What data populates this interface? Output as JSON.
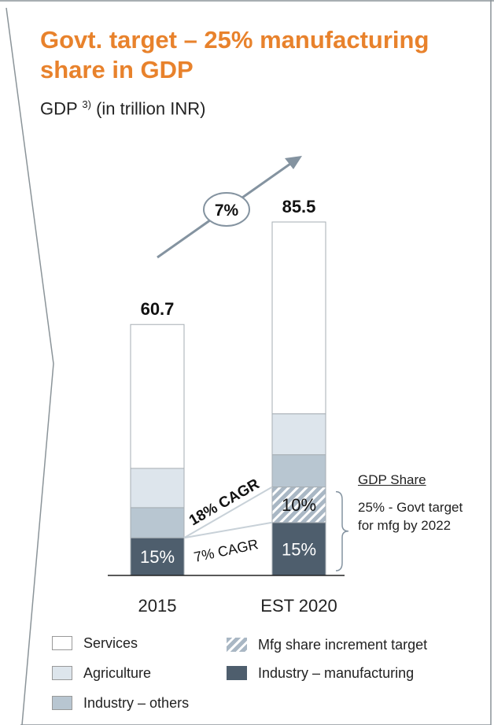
{
  "title": "Govt. target – 25% manufacturing share in GDP",
  "subtitle": {
    "text": "GDP",
    "sup": "3)",
    "unit": "(in trillion INR)"
  },
  "chart_data": {
    "type": "bar",
    "stacked": true,
    "categories": [
      "2015",
      "EST 2020"
    ],
    "totals": [
      "60.7",
      "85.5"
    ],
    "growth_label": "7%",
    "series": [
      {
        "name": "Industry – manufacturing",
        "values": [
          9.1,
          12.8
        ],
        "color": "#4E5E6D"
      },
      {
        "name": "Mfg share increment target",
        "values": [
          0,
          8.6
        ],
        "color": "#A9B7C4",
        "pattern": "hatch"
      },
      {
        "name": "Industry – others",
        "values": [
          7.3,
          7.8
        ],
        "color": "#B8C6D1"
      },
      {
        "name": "Agriculture",
        "values": [
          9.5,
          9.9
        ],
        "color": "#DDE5EC"
      },
      {
        "name": "Services",
        "values": [
          34.8,
          46.4
        ],
        "color": "#FFFFFF"
      }
    ],
    "segment_labels": [
      {
        "category": "2015",
        "series": "Industry – manufacturing",
        "text": "15%"
      },
      {
        "category": "EST 2020",
        "series": "Industry – manufacturing",
        "text": "15%"
      },
      {
        "category": "EST 2020",
        "series": "Mfg share increment target",
        "text": "10%"
      }
    ],
    "annotations": [
      "18% CAGR",
      "7% CAGR"
    ],
    "ylim": [
      0,
      85.5
    ]
  },
  "gdp_share": {
    "title": "GDP Share",
    "note": "25% - Govt target for mfg by 2022"
  },
  "legend": [
    {
      "label": "Services",
      "key": "services"
    },
    {
      "label": "Agriculture",
      "key": "agriculture"
    },
    {
      "label": "Industry – others",
      "key": "industry-others"
    },
    {
      "label": "Mfg share increment target",
      "key": "mfg-increment"
    },
    {
      "label": "Industry – manufacturing",
      "key": "industry-manufacturing"
    }
  ]
}
